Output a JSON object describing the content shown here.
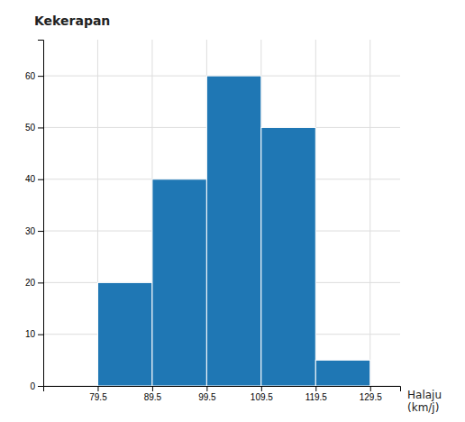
{
  "chart_data": {
    "type": "histogram",
    "title": "Kekerapan",
    "xlabel": "Halaju\n(km/j)",
    "bins": [
      79.5,
      89.5,
      99.5,
      109.5,
      119.5,
      129.5
    ],
    "values": [
      20,
      40,
      60,
      50,
      5
    ],
    "xlim": [
      69.5,
      135
    ],
    "ylim": [
      0,
      67
    ],
    "xticks": [
      79.5,
      89.5,
      99.5,
      109.5,
      119.5,
      129.5
    ],
    "yticks": [
      0,
      10,
      20,
      30,
      40,
      50,
      60
    ],
    "grid": true
  }
}
